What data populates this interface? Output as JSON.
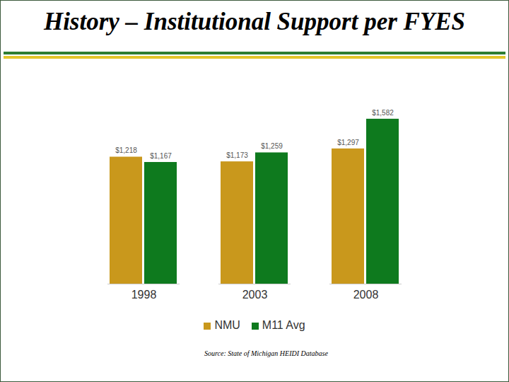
{
  "chart_data": {
    "type": "bar",
    "title": "History – Institutional Support per FYES",
    "categories": [
      "1998",
      "2003",
      "2008"
    ],
    "series": [
      {
        "name": "NMU",
        "color": "#c9981c",
        "values": [
          1218,
          1173,
          1297
        ],
        "value_labels": [
          "$1,218",
          "$1,173",
          "$1,297"
        ]
      },
      {
        "name": "M11 Avg",
        "color": "#0e7a1e",
        "values": [
          1167,
          1259,
          1582
        ],
        "value_labels": [
          "$1,167",
          "$1,259",
          "$1,582"
        ]
      }
    ],
    "ylim": [
      0,
      1900
    ],
    "data_labels": true,
    "tick_labels": "x",
    "legend": "bottom",
    "grid": false,
    "source": "Source: State of Michigan HEIDI Database"
  }
}
